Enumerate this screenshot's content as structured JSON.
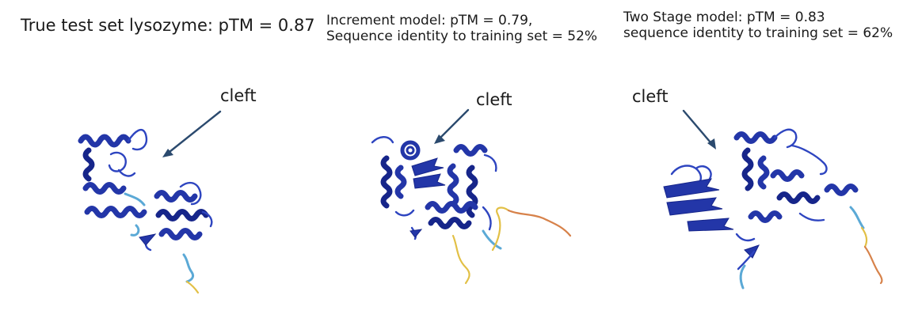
{
  "panels": [
    {
      "title_lines": [
        "True test set lysozyme: pTM = 0.87"
      ],
      "label": "cleft"
    },
    {
      "title_lines": [
        "Increment model:  pTM = 0.79,",
        "Sequence identity to training set = 52%"
      ],
      "label": "cleft"
    },
    {
      "title_lines": [
        "Two Stage model:  pTM = 0.83",
        "sequence identity to training set = 62%"
      ],
      "label": "cleft"
    }
  ],
  "colors": {
    "helix": "#2336a8",
    "helix_dark": "#16258a",
    "coil_high": "#2e45c0",
    "coil_mid": "#5ba9d6",
    "coil_low": "#e2c046",
    "coil_lowest": "#d7824a",
    "annotation_arrow": "#2b4a6e"
  }
}
